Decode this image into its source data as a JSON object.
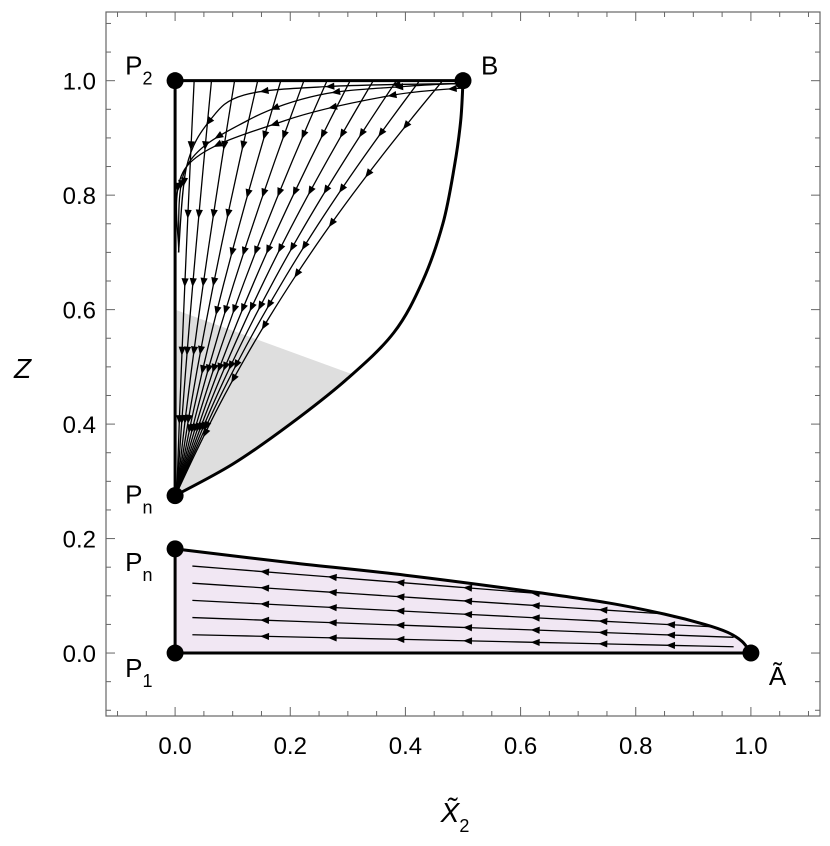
{
  "chart_data": {
    "type": "scatter",
    "title": "",
    "xlabel": "X̃",
    "xlabel_subscript": "2",
    "ylabel": "Z",
    "xlim": [
      -0.12,
      1.12
    ],
    "ylim": [
      -0.11,
      1.12
    ],
    "xticks": [
      0.0,
      0.2,
      0.4,
      0.6,
      0.8,
      1.0
    ],
    "xtick_labels": [
      "0.0",
      "0.2",
      "0.4",
      "0.6",
      "0.8",
      "1.0"
    ],
    "yticks": [
      0.0,
      0.2,
      0.4,
      0.6,
      0.8,
      1.0
    ],
    "ytick_labels": [
      "0.0",
      "0.2",
      "0.4",
      "0.6",
      "0.8",
      "1.0"
    ],
    "grid": false,
    "frame": true,
    "points": [
      {
        "id": "P2",
        "label": "P",
        "sub": "2",
        "x": 0.0,
        "y": 1.0
      },
      {
        "id": "B",
        "label": "B",
        "sub": "",
        "x": 0.5,
        "y": 1.0
      },
      {
        "id": "Pn_upper",
        "label": "P",
        "sub": "n",
        "x": 0.0,
        "y": 0.275
      },
      {
        "id": "Pn_lower",
        "label": "P",
        "sub": "n",
        "x": 0.0,
        "y": 0.182
      },
      {
        "id": "P1",
        "label": "P",
        "sub": "1",
        "x": 0.0,
        "y": 0.0
      },
      {
        "id": "A",
        "label": "Ã",
        "sub": "",
        "x": 1.0,
        "y": 0.0
      }
    ],
    "regions": [
      {
        "name": "upper",
        "fill": "#ffffff",
        "boundary_curve": [
          [
            0.0,
            0.275
          ],
          [
            0.1,
            0.33
          ],
          [
            0.2,
            0.4
          ],
          [
            0.3,
            0.48
          ],
          [
            0.38,
            0.56
          ],
          [
            0.43,
            0.65
          ],
          [
            0.465,
            0.75
          ],
          [
            0.485,
            0.85
          ],
          [
            0.496,
            0.93
          ],
          [
            0.5,
            1.0
          ]
        ]
      },
      {
        "name": "upper-shaded",
        "fill": "#dedede",
        "top_line": [
          [
            0.0,
            0.6
          ],
          [
            0.3,
            0.49
          ]
        ]
      },
      {
        "name": "lower",
        "fill": "#f1e7f3",
        "boundary_curve": [
          [
            0.0,
            0.182
          ],
          [
            0.2,
            0.158
          ],
          [
            0.4,
            0.136
          ],
          [
            0.6,
            0.11
          ],
          [
            0.75,
            0.088
          ],
          [
            0.85,
            0.068
          ],
          [
            0.92,
            0.05
          ],
          [
            0.96,
            0.036
          ],
          [
            0.985,
            0.02
          ],
          [
            1.0,
            0.0
          ]
        ]
      }
    ],
    "colors": {
      "frame": "#666666",
      "boundary": "#000000",
      "shaded": "#dedede",
      "lower_fill": "#f1e7f3",
      "point": "#000000"
    }
  }
}
